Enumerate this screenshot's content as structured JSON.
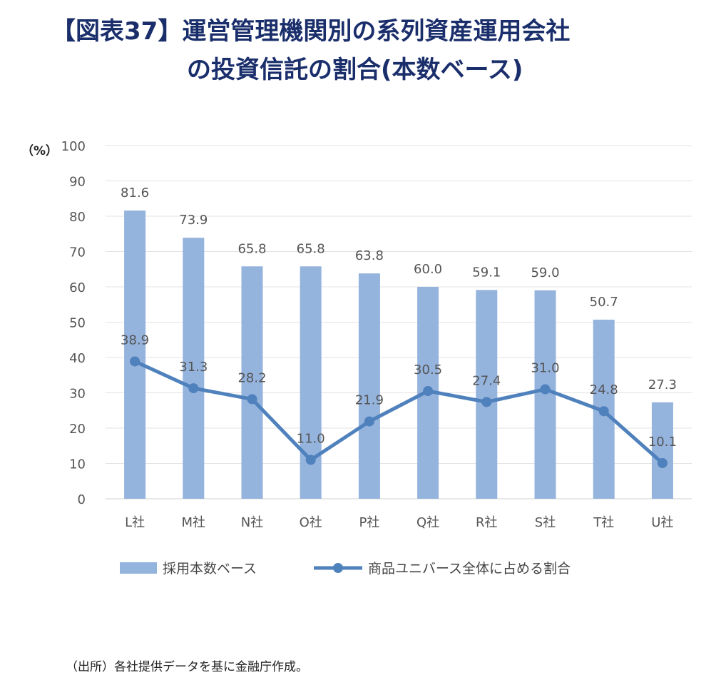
{
  "title_line1": "【図表37】運営管理機関別の系列資産運用会社",
  "title_line2": "の投資信託の割合(本数ベース)",
  "source": "（出所）各社提供データを基に金融庁作成。",
  "chart_data": {
    "type": "bar",
    "categories": [
      "L社",
      "M社",
      "N社",
      "O社",
      "P社",
      "Q社",
      "R社",
      "S社",
      "T社",
      "U社"
    ],
    "series": [
      {
        "name": "採用本数ベース",
        "type": "bar",
        "color": "#94b3dd",
        "values": [
          81.6,
          73.9,
          65.8,
          65.8,
          63.8,
          60.0,
          59.1,
          59.0,
          50.7,
          27.3
        ],
        "labels": [
          "81.6",
          "73.9",
          "65.8",
          "65.8",
          "63.8",
          "60.0",
          "59.1",
          "59.0",
          "50.7",
          "27.3"
        ]
      },
      {
        "name": "商品ユニバース全体に占める割合",
        "type": "line",
        "color": "#4f81bd",
        "values": [
          38.9,
          31.3,
          28.2,
          11.0,
          21.9,
          30.5,
          27.4,
          31.0,
          24.8,
          10.1
        ],
        "labels": [
          "38.9",
          "31.3",
          "28.2",
          "11.0",
          "21.9",
          "30.5",
          "27.4",
          "31.0",
          "24.8",
          "10.1"
        ]
      }
    ],
    "ylabel": "（%）",
    "ylim": [
      0,
      100
    ],
    "yticks": [
      "0",
      "10",
      "20",
      "30",
      "40",
      "50",
      "60",
      "70",
      "80",
      "90",
      "100"
    ],
    "grid": true,
    "legend": "bottom"
  }
}
